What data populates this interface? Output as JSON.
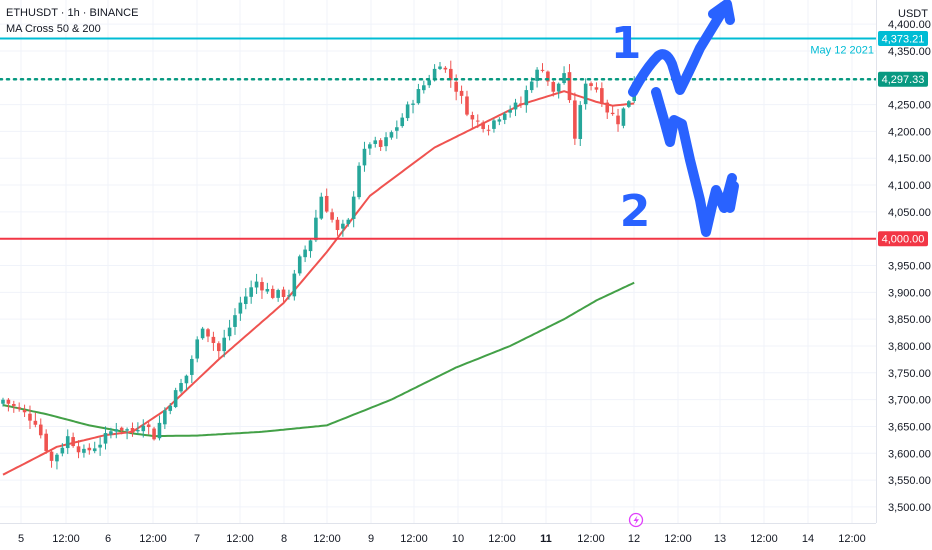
{
  "legend": {
    "symbol": "ETHUSDT · 1h · BINANCE",
    "indicator": "MA Cross 50 & 200"
  },
  "currency": "USDT",
  "colors": {
    "up": "#26a69a",
    "down": "#ef5350",
    "ma50": "#ef5350",
    "ma200": "#43a047",
    "cyan": "#00bcd4",
    "support": "#f23645",
    "price_line": "#089981",
    "annotation": "#2962ff"
  },
  "chart_data": {
    "type": "candlestick",
    "y_range": [
      3470,
      4445
    ],
    "x_ticks": [
      "5",
      "12:00",
      "6",
      "12:00",
      "7",
      "12:00",
      "8",
      "12:00",
      "9",
      "12:00",
      "10",
      "12:00",
      "11",
      "12:00",
      "12",
      "12:00",
      "13",
      "12:00",
      "14",
      "12:00"
    ],
    "y_ticks": [
      "4,400.00",
      "4,350.00",
      "4,250.00",
      "4,200.00",
      "4,150.00",
      "4,100.00",
      "4,050.00",
      "3,950.00",
      "3,900.00",
      "3,850.00",
      "3,800.00",
      "3,750.00",
      "3,700.00",
      "3,650.00",
      "3,600.00",
      "3,550.00",
      "3,500.00"
    ],
    "horizontal_levels": [
      {
        "value": 4373.21,
        "label": "4,373.21",
        "style": "solid",
        "color": "#00bcd4"
      },
      {
        "value": 4297.33,
        "label": "4,297.33",
        "style": "dotted",
        "color": "#089981"
      },
      {
        "value": 4000.0,
        "label": "4,000.00",
        "style": "solid",
        "color": "#f23645"
      }
    ],
    "level_note": "May 12 2021",
    "anchors": [
      [
        0,
        3700
      ],
      [
        6,
        3660
      ],
      [
        9,
        3585
      ],
      [
        12,
        3630
      ],
      [
        15,
        3600
      ],
      [
        18,
        3620
      ],
      [
        21,
        3650
      ],
      [
        24,
        3640
      ],
      [
        26,
        3660
      ],
      [
        28,
        3632
      ],
      [
        30,
        3680
      ],
      [
        34,
        3745
      ],
      [
        37,
        3840
      ],
      [
        40,
        3790
      ],
      [
        44,
        3880
      ],
      [
        47,
        3920
      ],
      [
        50,
        3895
      ],
      [
        53,
        3898
      ],
      [
        55,
        3960
      ],
      [
        57,
        4000
      ],
      [
        59,
        4080
      ],
      [
        62,
        4012
      ],
      [
        64,
        4030
      ],
      [
        66,
        4140
      ],
      [
        68,
        4180
      ],
      [
        70,
        4170
      ],
      [
        73,
        4210
      ],
      [
        76,
        4260
      ],
      [
        79,
        4300
      ],
      [
        81,
        4330
      ],
      [
        84,
        4280
      ],
      [
        87,
        4220
      ],
      [
        90,
        4210
      ],
      [
        93,
        4240
      ],
      [
        96,
        4250
      ],
      [
        98,
        4300
      ],
      [
        100,
        4320
      ],
      [
        102,
        4270
      ],
      [
        104,
        4310
      ],
      [
        106,
        4190
      ],
      [
        108,
        4295
      ],
      [
        110,
        4280
      ],
      [
        112,
        4240
      ],
      [
        114,
        4220
      ],
      [
        116,
        4260
      ],
      [
        117,
        4297.33
      ]
    ],
    "ma50": [
      [
        0,
        3560
      ],
      [
        10,
        3612
      ],
      [
        19,
        3634
      ],
      [
        24,
        3640
      ],
      [
        30,
        3680
      ],
      [
        40,
        3775
      ],
      [
        52,
        3880
      ],
      [
        60,
        3975
      ],
      [
        68,
        4080
      ],
      [
        80,
        4170
      ],
      [
        88,
        4210
      ],
      [
        96,
        4250
      ],
      [
        104,
        4275
      ],
      [
        110,
        4255
      ],
      [
        113,
        4248
      ],
      [
        117,
        4252
      ]
    ],
    "ma200": [
      [
        0,
        3690
      ],
      [
        8,
        3673
      ],
      [
        16,
        3652
      ],
      [
        24,
        3637
      ],
      [
        28,
        3632
      ],
      [
        36,
        3633
      ],
      [
        48,
        3640
      ],
      [
        60,
        3652
      ],
      [
        72,
        3700
      ],
      [
        84,
        3760
      ],
      [
        94,
        3800
      ],
      [
        104,
        3850
      ],
      [
        110,
        3885
      ],
      [
        117,
        3918
      ]
    ],
    "annotations": [
      "1",
      "2"
    ]
  }
}
